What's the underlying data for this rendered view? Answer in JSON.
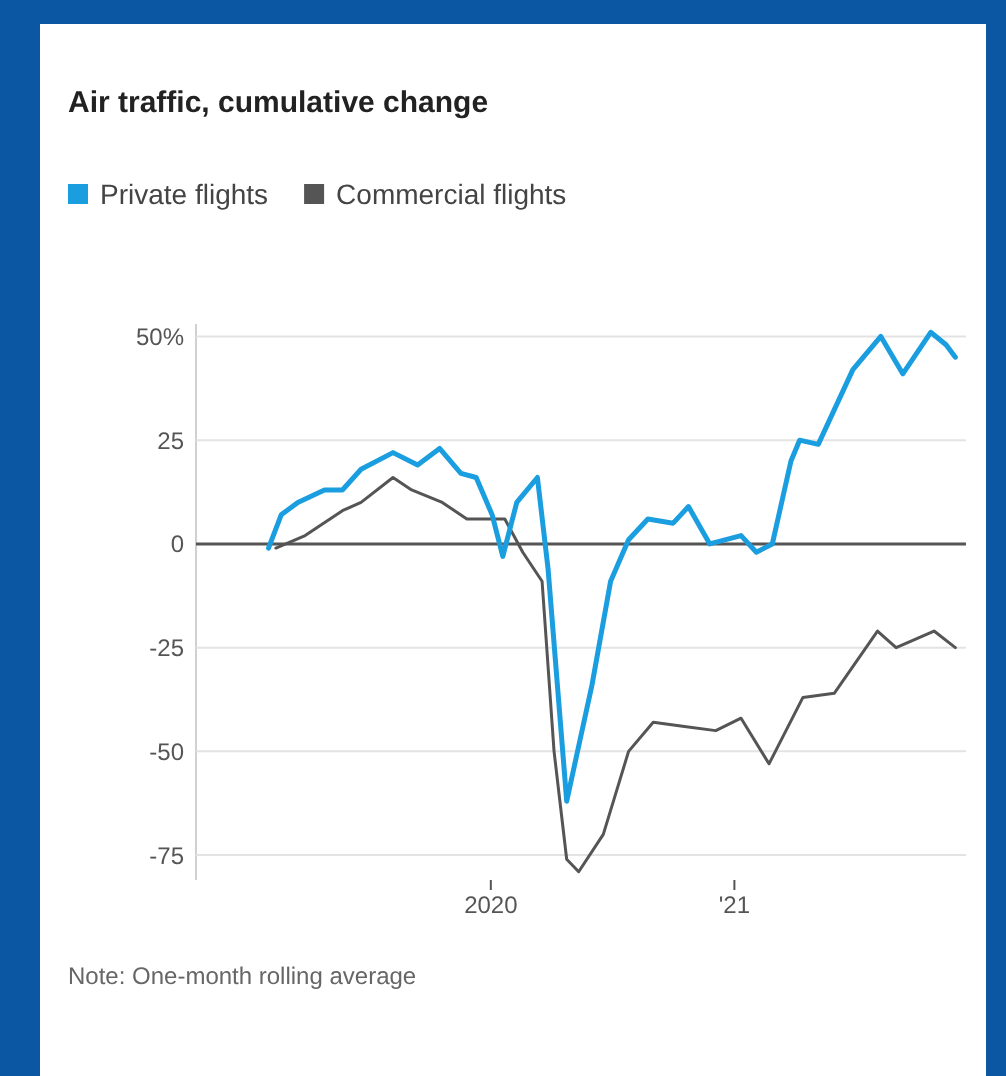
{
  "chart_data": {
    "type": "line",
    "title": "Air traffic, cumulative change",
    "legend": "top left",
    "grid": "y",
    "line_style": "solid",
    "marker": "none",
    "xlim": [
      "2018-10-15",
      "2021-12-15"
    ],
    "xticks": [
      {
        "value": "2020-01-01",
        "label": "2020"
      },
      {
        "value": "2021-01-01",
        "label": "'21"
      }
    ],
    "ylim": [
      -81,
      53
    ],
    "yticks": [
      {
        "value": 50,
        "label": "50%"
      },
      25,
      0,
      -25,
      -50,
      -75
    ],
    "ref_lines": [
      {
        "axis": "y",
        "value": 0,
        "label": null,
        "color": "#555555"
      }
    ],
    "series": [
      {
        "name": "Private flights",
        "color": "#1a9ee0",
        "x": [
          "2019-02-01",
          "2019-02-20",
          "2019-03-17",
          "2019-04-26",
          "2019-05-23",
          "2019-06-20",
          "2019-08-07",
          "2019-09-13",
          "2019-10-16",
          "2019-11-17",
          "2019-12-10",
          "2020-01-03",
          "2020-01-19",
          "2020-02-09",
          "2020-03-11",
          "2020-03-27",
          "2020-04-24",
          "2020-06-01",
          "2020-06-29",
          "2020-07-26",
          "2020-08-24",
          "2020-10-01",
          "2020-10-24",
          "2020-11-25",
          "2021-01-11",
          "2021-02-03",
          "2021-02-27",
          "2021-03-27",
          "2021-04-09",
          "2021-05-07",
          "2021-06-28",
          "2021-08-09",
          "2021-09-11",
          "2021-10-23",
          "2021-11-15",
          "2021-11-29"
        ],
        "values": [
          -1,
          7,
          10,
          13,
          13,
          18,
          22,
          19,
          23,
          17,
          16,
          7,
          -3,
          10,
          16,
          -6,
          -62,
          -34,
          -9,
          1,
          6,
          5,
          9,
          0,
          2,
          -2,
          0,
          20,
          25,
          24,
          42,
          50,
          41,
          51,
          48,
          45
        ]
      },
      {
        "name": "Commercial flights",
        "color": "#555555",
        "x": [
          "2019-02-12",
          "2019-03-28",
          "2019-05-23",
          "2019-06-20",
          "2019-08-07",
          "2019-09-04",
          "2019-10-20",
          "2019-11-26",
          "2020-01-22",
          "2020-02-18",
          "2020-03-18",
          "2020-04-05",
          "2020-04-24",
          "2020-05-12",
          "2020-06-18",
          "2020-07-26",
          "2020-09-01",
          "2020-10-18",
          "2020-12-04",
          "2021-01-11",
          "2021-02-22",
          "2021-04-14",
          "2021-05-31",
          "2021-08-04",
          "2021-09-01",
          "2021-10-28",
          "2021-11-29"
        ],
        "values": [
          -1,
          2,
          8,
          10,
          16,
          13,
          10,
          6,
          6,
          -2,
          -9,
          -50,
          -76,
          -79,
          -70,
          -50,
          -43,
          -44,
          -45,
          -42,
          -53,
          -37,
          -36,
          -21,
          -25,
          -21,
          -25
        ]
      }
    ],
    "annotations": [
      "Note: One-month rolling average"
    ]
  }
}
